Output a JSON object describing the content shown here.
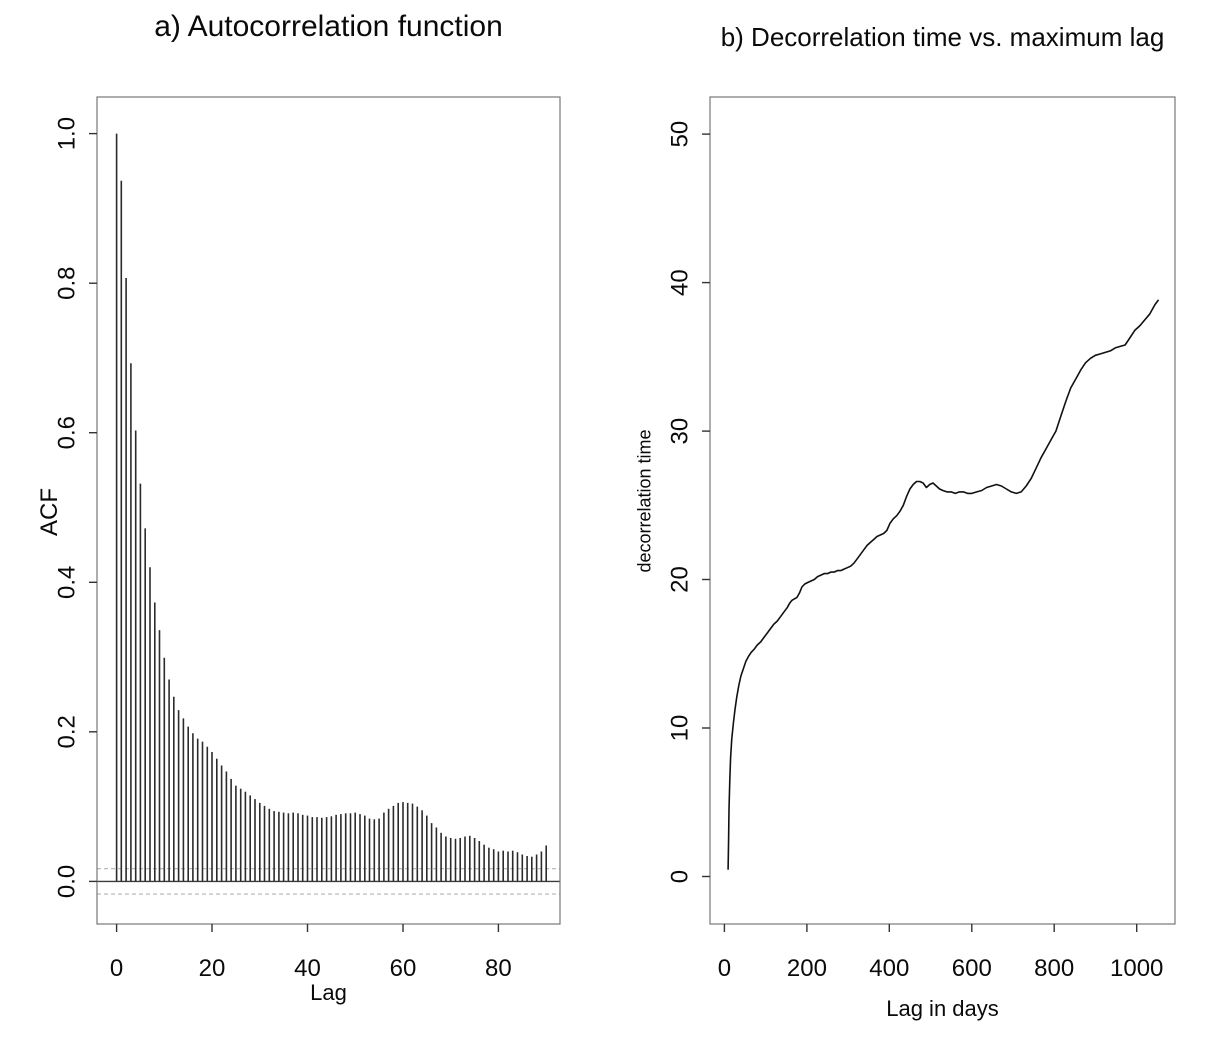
{
  "page": {
    "background": "#ffffff",
    "text_color": "#0a0a0a",
    "box_color": "#777777",
    "bar_color": "#2b2b2b",
    "line_color": "#111111",
    "dash_color": "#b3b3b3"
  },
  "chart_data": [
    {
      "id": "acf",
      "type": "bar",
      "title": "a) Autocorrelation function",
      "xlabel": "Lag",
      "ylabel": "ACF",
      "xlim": [
        -4.1,
        92.9
      ],
      "ylim": [
        -0.057,
        1.049
      ],
      "xticks": [
        0,
        20,
        40,
        60,
        80
      ],
      "xtick_labels": [
        "0",
        "20",
        "40",
        "60",
        "80"
      ],
      "yticks": [
        0,
        0.2,
        0.4,
        0.6,
        0.8,
        1
      ],
      "ytick_labels": [
        "0.0",
        "0.2",
        "0.4",
        "0.6",
        "0.8",
        "1.0"
      ],
      "zero_line": 0,
      "confidence_bounds": [
        0.017,
        -0.017
      ],
      "grid": false,
      "legend": null,
      "lags": [
        0,
        1,
        2,
        3,
        4,
        5,
        6,
        7,
        8,
        9,
        10,
        11,
        12,
        13,
        14,
        15,
        16,
        17,
        18,
        19,
        20,
        21,
        22,
        23,
        24,
        25,
        26,
        27,
        28,
        29,
        30,
        31,
        32,
        33,
        34,
        35,
        36,
        37,
        38,
        39,
        40,
        41,
        42,
        43,
        44,
        45,
        46,
        47,
        48,
        49,
        50,
        51,
        52,
        53,
        54,
        55,
        56,
        57,
        58,
        59,
        60,
        61,
        62,
        63,
        64,
        65,
        66,
        67,
        68,
        69,
        70,
        71,
        72,
        73,
        74,
        75,
        76,
        77,
        78,
        79,
        80,
        81,
        82,
        83,
        84,
        85,
        86,
        87,
        88,
        89,
        90
      ],
      "values": [
        1.0,
        0.937,
        0.807,
        0.693,
        0.603,
        0.532,
        0.472,
        0.42,
        0.373,
        0.336,
        0.299,
        0.27,
        0.247,
        0.229,
        0.218,
        0.207,
        0.198,
        0.191,
        0.187,
        0.18,
        0.173,
        0.164,
        0.155,
        0.147,
        0.137,
        0.128,
        0.124,
        0.12,
        0.115,
        0.11,
        0.105,
        0.101,
        0.097,
        0.094,
        0.093,
        0.092,
        0.091,
        0.092,
        0.091,
        0.089,
        0.088,
        0.086,
        0.086,
        0.085,
        0.086,
        0.087,
        0.089,
        0.09,
        0.091,
        0.091,
        0.092,
        0.09,
        0.088,
        0.084,
        0.083,
        0.084,
        0.092,
        0.097,
        0.101,
        0.105,
        0.106,
        0.105,
        0.104,
        0.1,
        0.095,
        0.088,
        0.078,
        0.072,
        0.065,
        0.06,
        0.058,
        0.057,
        0.058,
        0.06,
        0.061,
        0.058,
        0.054,
        0.049,
        0.045,
        0.043,
        0.04,
        0.041,
        0.04,
        0.041,
        0.039,
        0.036,
        0.034,
        0.033,
        0.036,
        0.04,
        0.048
      ]
    },
    {
      "id": "decorrelation-time",
      "type": "line",
      "title": "b) Decorrelation time vs. maximum lag",
      "xlabel": "Lag in days",
      "ylabel": "decorrelation time",
      "xlim": [
        -35,
        1093
      ],
      "ylim": [
        -3.2,
        52.5
      ],
      "xticks": [
        0,
        200,
        400,
        600,
        800,
        1000
      ],
      "xtick_labels": [
        "0",
        "200",
        "400",
        "600",
        "800",
        "1000"
      ],
      "yticks": [
        0,
        10,
        20,
        30,
        40,
        50
      ],
      "ytick_labels": [
        "0",
        "10",
        "20",
        "30",
        "40",
        "50"
      ],
      "grid": false,
      "legend": null,
      "x": [
        9,
        10,
        11,
        13,
        15,
        18,
        22,
        26,
        30,
        35,
        40,
        46,
        52,
        58,
        65,
        72,
        80,
        88,
        96,
        104,
        112,
        120,
        128,
        136,
        144,
        152,
        158,
        164,
        170,
        176,
        182,
        188,
        195,
        202,
        210,
        218,
        226,
        234,
        242,
        250,
        258,
        266,
        274,
        282,
        290,
        298,
        306,
        314,
        322,
        330,
        338,
        346,
        354,
        362,
        370,
        378,
        386,
        394,
        402,
        410,
        418,
        426,
        434,
        442,
        450,
        458,
        466,
        474,
        482,
        490,
        498,
        506,
        514,
        522,
        530,
        540,
        550,
        560,
        570,
        580,
        590,
        600,
        612,
        624,
        636,
        648,
        660,
        672,
        684,
        696,
        708,
        720,
        732,
        744,
        756,
        768,
        780,
        792,
        804,
        816,
        828,
        840,
        852,
        864,
        876,
        888,
        900,
        912,
        924,
        936,
        948,
        960,
        972,
        984,
        996,
        1008,
        1020,
        1032,
        1044,
        1052
      ],
      "y": [
        0.5,
        2.5,
        4.5,
        6.5,
        8.0,
        9.3,
        10.4,
        11.3,
        12.1,
        12.9,
        13.5,
        14.0,
        14.5,
        14.8,
        15.1,
        15.3,
        15.6,
        15.8,
        16.1,
        16.4,
        16.7,
        17.0,
        17.2,
        17.5,
        17.8,
        18.1,
        18.4,
        18.6,
        18.7,
        18.8,
        19.1,
        19.5,
        19.7,
        19.8,
        19.9,
        20.0,
        20.2,
        20.3,
        20.4,
        20.4,
        20.5,
        20.5,
        20.6,
        20.6,
        20.7,
        20.8,
        20.9,
        21.1,
        21.4,
        21.7,
        22.0,
        22.3,
        22.5,
        22.7,
        22.9,
        23.0,
        23.1,
        23.3,
        23.8,
        24.1,
        24.3,
        24.6,
        25.0,
        25.6,
        26.1,
        26.4,
        26.6,
        26.6,
        26.5,
        26.2,
        26.4,
        26.5,
        26.3,
        26.1,
        26.0,
        25.9,
        25.9,
        25.8,
        25.9,
        25.9,
        25.8,
        25.8,
        25.9,
        26.0,
        26.2,
        26.3,
        26.4,
        26.3,
        26.1,
        25.9,
        25.8,
        25.9,
        26.3,
        26.8,
        27.5,
        28.2,
        28.8,
        29.4,
        30.0,
        31.0,
        32.0,
        32.9,
        33.5,
        34.1,
        34.6,
        34.9,
        35.1,
        35.2,
        35.3,
        35.4,
        35.6,
        35.7,
        35.8,
        36.3,
        36.8,
        37.1,
        37.5,
        37.9,
        38.5,
        38.8
      ]
    }
  ]
}
